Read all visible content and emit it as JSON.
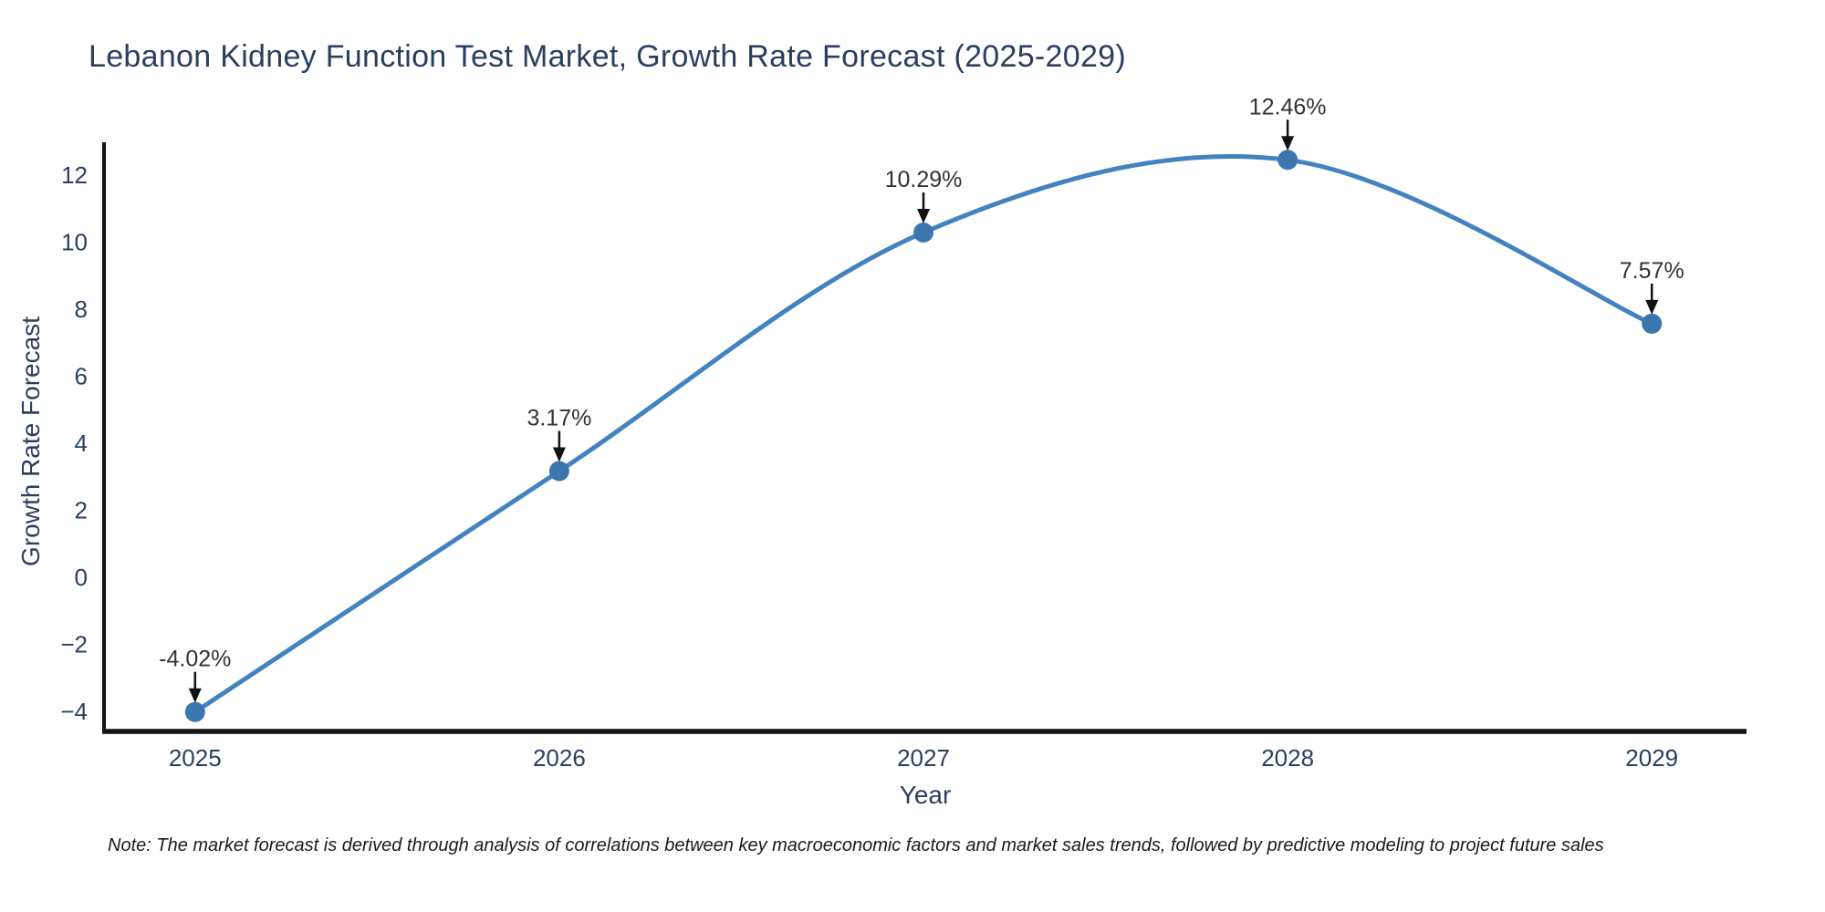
{
  "title": "Lebanon Kidney Function Test Market, Growth Rate Forecast (2025-2029)",
  "note": "Note: The market forecast is derived through analysis of correlations between key macroeconomic factors and market sales trends, followed by predictive modeling to project future sales",
  "chart_data": {
    "type": "line",
    "line_shape": "spline",
    "markers": true,
    "grid": false,
    "legend_position": "none",
    "title": "Lebanon Kidney Function Test Market, Growth Rate Forecast (2025-2029)",
    "xlabel": "Year",
    "ylabel": "Growth Rate Forecast",
    "x": [
      2025,
      2026,
      2027,
      2028,
      2029
    ],
    "x_tick_labels": [
      "2025",
      "2026",
      "2027",
      "2028",
      "2029"
    ],
    "values": [
      -4.02,
      3.17,
      10.29,
      12.46,
      7.57
    ],
    "point_labels": [
      "-4.02%",
      "3.17%",
      "10.29%",
      "12.46%",
      "7.57%"
    ],
    "yticks": [
      -4,
      -2,
      0,
      2,
      4,
      6,
      8,
      10,
      12
    ],
    "y_tick_labels": [
      "−4",
      "−2",
      "0",
      "2",
      "4",
      "6",
      "8",
      "10",
      "12"
    ],
    "ylim": [
      -4.6,
      12.93
    ],
    "xlim": [
      2024.75,
      2029.26
    ],
    "colors": {
      "line": "#4283bf",
      "marker": "#3b76af",
      "axis": "#141414",
      "tick_text": "#2a3f5f",
      "title_text": "#2a3f5f",
      "annotation_text": "#333333",
      "arrow": "#111111",
      "background": "#ffffff"
    }
  }
}
